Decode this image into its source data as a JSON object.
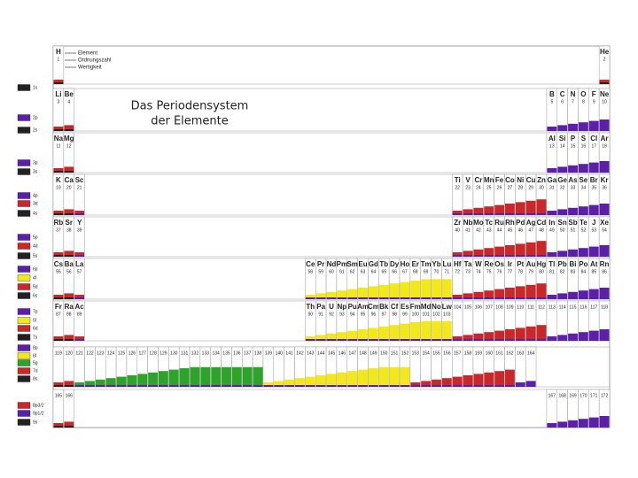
{
  "title": [
    "Das Periodensystem",
    "der Elemente"
  ],
  "key": [
    "Element",
    "Ordnungszahl",
    "Wertigkeit"
  ],
  "orbital_labels": [
    {
      "label": "1s",
      "color": "#222222"
    },
    {
      "label": "2p",
      "color": "#5b1fa8"
    },
    {
      "label": "2s",
      "color": "#222222"
    },
    {
      "label": "3p",
      "color": "#5b1fa8"
    },
    {
      "label": "3s",
      "color": "#222222"
    },
    {
      "label": "4p",
      "color": "#5b1fa8"
    },
    {
      "label": "3d",
      "color": "#c8282a"
    },
    {
      "label": "4s",
      "color": "#222222"
    },
    {
      "label": "5p",
      "color": "#5b1fa8"
    },
    {
      "label": "4d",
      "color": "#c8282a"
    },
    {
      "label": "5s",
      "color": "#222222"
    },
    {
      "label": "6p",
      "color": "#5b1fa8"
    },
    {
      "label": "4f",
      "color": "#f2e81b"
    },
    {
      "label": "5d",
      "color": "#c8282a"
    },
    {
      "label": "6s",
      "color": "#222222"
    },
    {
      "label": "7p",
      "color": "#5b1fa8"
    },
    {
      "label": "5f",
      "color": "#f2e81b"
    },
    {
      "label": "6d",
      "color": "#c8282a"
    },
    {
      "label": "7s",
      "color": "#222222"
    },
    {
      "label": "8p",
      "color": "#5b1fa8"
    },
    {
      "label": "6f",
      "color": "#f2e81b"
    },
    {
      "label": "5g",
      "color": "#2ea32a"
    },
    {
      "label": "7d",
      "color": "#c8282a"
    },
    {
      "label": "8s",
      "color": "#222222"
    },
    {
      "label": "8p3/2",
      "color": "#c8282a"
    },
    {
      "label": "9p1/2",
      "color": "#5b1fa8"
    },
    {
      "label": "9s",
      "color": "#222222"
    }
  ],
  "rows": [
    [
      {
        "symbol": "H",
        "number": 1
      },
      {
        "symbol": "He",
        "number": 2
      }
    ],
    [
      {
        "symbol": "Li",
        "number": 3
      },
      {
        "symbol": "Be",
        "number": 4
      },
      {
        "symbol": "B",
        "number": 5
      },
      {
        "symbol": "C",
        "number": 6
      },
      {
        "symbol": "N",
        "number": 7
      },
      {
        "symbol": "O",
        "number": 8
      },
      {
        "symbol": "F",
        "number": 9
      },
      {
        "symbol": "Ne",
        "number": 10
      }
    ],
    [
      {
        "symbol": "Na",
        "number": 11
      },
      {
        "symbol": "Mg",
        "number": 12
      },
      {
        "symbol": "Al",
        "number": 13
      },
      {
        "symbol": "Si",
        "number": 14
      },
      {
        "symbol": "P",
        "number": 15
      },
      {
        "symbol": "S",
        "number": 16
      },
      {
        "symbol": "Cl",
        "number": 17
      },
      {
        "symbol": "Ar",
        "number": 18
      }
    ],
    [
      {
        "symbol": "K",
        "number": 19
      },
      {
        "symbol": "Ca",
        "number": 20
      },
      {
        "symbol": "Sc",
        "number": 21
      },
      {
        "symbol": "Ti",
        "number": 22
      },
      {
        "symbol": "V",
        "number": 23
      },
      {
        "symbol": "Cr",
        "number": 24
      },
      {
        "symbol": "Mn",
        "number": 25
      },
      {
        "symbol": "Fe",
        "number": 26
      },
      {
        "symbol": "Co",
        "number": 27
      },
      {
        "symbol": "Ni",
        "number": 28
      },
      {
        "symbol": "Cu",
        "number": 29
      },
      {
        "symbol": "Zn",
        "number": 30
      },
      {
        "symbol": "Ga",
        "number": 31
      },
      {
        "symbol": "Ge",
        "number": 32
      },
      {
        "symbol": "As",
        "number": 33
      },
      {
        "symbol": "Se",
        "number": 34
      },
      {
        "symbol": "Br",
        "number": 35
      },
      {
        "symbol": "Kr",
        "number": 36
      }
    ],
    [
      {
        "symbol": "Rb",
        "number": 37
      },
      {
        "symbol": "Sr",
        "number": 38
      },
      {
        "symbol": "Y",
        "number": 39
      },
      {
        "symbol": "Zr",
        "number": 40
      },
      {
        "symbol": "Nb",
        "number": 41
      },
      {
        "symbol": "Mo",
        "number": 42
      },
      {
        "symbol": "Tc",
        "number": 43
      },
      {
        "symbol": "Ru",
        "number": 44
      },
      {
        "symbol": "Rh",
        "number": 45
      },
      {
        "symbol": "Pd",
        "number": 46
      },
      {
        "symbol": "Ag",
        "number": 47
      },
      {
        "symbol": "Cd",
        "number": 48
      },
      {
        "symbol": "In",
        "number": 49
      },
      {
        "symbol": "Sn",
        "number": 50
      },
      {
        "symbol": "Sb",
        "number": 51
      },
      {
        "symbol": "Te",
        "number": 52
      },
      {
        "symbol": "J",
        "number": 53
      },
      {
        "symbol": "Xe",
        "number": 54
      }
    ],
    [
      {
        "symbol": "Cs",
        "number": 55
      },
      {
        "symbol": "Ba",
        "number": 56
      },
      {
        "symbol": "La",
        "number": 57
      },
      {
        "symbol": "Ce",
        "number": 58
      },
      {
        "symbol": "Pr",
        "number": 59
      },
      {
        "symbol": "Nd",
        "number": 60
      },
      {
        "symbol": "Pm",
        "number": 61
      },
      {
        "symbol": "Sm",
        "number": 62
      },
      {
        "symbol": "Eu",
        "number": 63
      },
      {
        "symbol": "Gd",
        "number": 64
      },
      {
        "symbol": "Tb",
        "number": 65
      },
      {
        "symbol": "Dy",
        "number": 66
      },
      {
        "symbol": "Ho",
        "number": 67
      },
      {
        "symbol": "Er",
        "number": 68
      },
      {
        "symbol": "Tm",
        "number": 69
      },
      {
        "symbol": "Yb",
        "number": 70
      },
      {
        "symbol": "Lu",
        "number": 71
      },
      {
        "symbol": "Hf",
        "number": 72
      },
      {
        "symbol": "Ta",
        "number": 73
      },
      {
        "symbol": "W",
        "number": 74
      },
      {
        "symbol": "Re",
        "number": 75
      },
      {
        "symbol": "Os",
        "number": 76
      },
      {
        "symbol": "Ir",
        "number": 77
      },
      {
        "symbol": "Pt",
        "number": 78
      },
      {
        "symbol": "Au",
        "number": 79
      },
      {
        "symbol": "Hg",
        "number": 80
      },
      {
        "symbol": "Tl",
        "number": 81
      },
      {
        "symbol": "Pb",
        "number": 82
      },
      {
        "symbol": "Bi",
        "number": 83
      },
      {
        "symbol": "Po",
        "number": 84
      },
      {
        "symbol": "At",
        "number": 85
      },
      {
        "symbol": "Rn",
        "number": 86
      }
    ],
    [
      {
        "symbol": "Fr",
        "number": 87
      },
      {
        "symbol": "Ra",
        "number": 88
      },
      {
        "symbol": "Ac",
        "number": 89
      },
      {
        "symbol": "Th",
        "number": 90
      },
      {
        "symbol": "Pa",
        "number": 91
      },
      {
        "symbol": "U",
        "number": 92
      },
      {
        "symbol": "Np",
        "number": 93
      },
      {
        "symbol": "Pu",
        "number": 94
      },
      {
        "symbol": "Am",
        "number": 95
      },
      {
        "symbol": "Cm",
        "number": 96
      },
      {
        "symbol": "Bk",
        "number": 97
      },
      {
        "symbol": "Cf",
        "number": 98
      },
      {
        "symbol": "Es",
        "number": 99
      },
      {
        "symbol": "Fm",
        "number": 100
      },
      {
        "symbol": "Md",
        "number": 101
      },
      {
        "symbol": "No",
        "number": 102
      },
      {
        "symbol": "Lw",
        "number": 103
      },
      {
        "number": 104
      },
      {
        "number": 105
      },
      {
        "number": 106
      },
      {
        "number": 107
      },
      {
        "number": 108
      },
      {
        "number": 109
      },
      {
        "number": 110
      },
      {
        "number": 111
      },
      {
        "number": 112
      },
      {
        "number": 113
      },
      {
        "number": 114
      },
      {
        "number": 115
      },
      {
        "number": 116
      },
      {
        "number": 117
      },
      {
        "number": 118
      }
    ],
    [
      {
        "number": 119
      },
      {
        "number": 120
      },
      {
        "number": 121
      },
      {
        "number": 122
      },
      {
        "number": 123
      },
      {
        "number": 124
      },
      {
        "number": 125
      },
      {
        "number": 126
      },
      {
        "number": 127
      },
      {
        "number": 128
      },
      {
        "number": 129
      },
      {
        "number": 130
      },
      {
        "number": 131
      },
      {
        "number": 132
      },
      {
        "number": 133
      },
      {
        "number": 134
      },
      {
        "number": 135
      },
      {
        "number": 136
      },
      {
        "number": 137
      },
      {
        "number": 138
      },
      {
        "number": 139
      },
      {
        "number": 140
      },
      {
        "number": 141
      },
      {
        "number": 142
      },
      {
        "number": 143
      },
      {
        "number": 144
      },
      {
        "number": 145
      },
      {
        "number": 146
      },
      {
        "number": 147
      },
      {
        "number": 148
      },
      {
        "number": 149
      },
      {
        "number": 150
      },
      {
        "number": 151
      },
      {
        "number": 152
      },
      {
        "number": 153
      },
      {
        "number": 154
      },
      {
        "number": 155
      },
      {
        "number": 156
      },
      {
        "number": 157
      },
      {
        "number": 158
      },
      {
        "number": 159
      },
      {
        "number": 160
      },
      {
        "number": 161
      },
      {
        "number": 162
      },
      {
        "number": 163
      },
      {
        "number": 164
      }
    ],
    [
      {
        "number": 165
      },
      {
        "number": 166
      },
      {
        "number": 167
      },
      {
        "number": 168
      },
      {
        "number": 169
      },
      {
        "number": 170
      },
      {
        "number": 171
      },
      {
        "number": 172
      }
    ]
  ]
}
